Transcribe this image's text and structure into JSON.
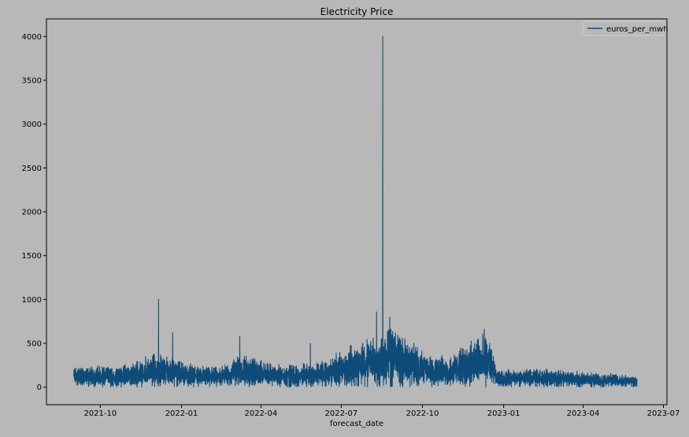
{
  "chart_data": {
    "type": "line",
    "title": "Electricity Price",
    "xlabel": "forecast_date",
    "ylabel": "",
    "x_range": [
      "2021-09-01",
      "2023-06-01"
    ],
    "xlim": [
      "2021-08-01",
      "2023-07-05"
    ],
    "ylim": [
      -200,
      4200
    ],
    "legend_position": "top-right",
    "grid": false,
    "x_ticks": [
      "2021-10",
      "2022-01",
      "2022-04",
      "2022-07",
      "2022-10",
      "2023-01",
      "2023-04",
      "2023-07"
    ],
    "y_ticks": [
      "0",
      "500",
      "1000",
      "1500",
      "2000",
      "2500",
      "3000",
      "3500",
      "4000"
    ],
    "series": [
      {
        "name": "euros_per_mwh",
        "color": "#0f4b78",
        "sampling": "hourly",
        "level_points": [
          [
            "2021-09-01",
            115
          ],
          [
            "2021-10-01",
            120
          ],
          [
            "2021-11-01",
            120
          ],
          [
            "2021-12-01",
            190
          ],
          [
            "2021-12-20",
            180
          ],
          [
            "2022-01-10",
            130
          ],
          [
            "2022-02-15",
            110
          ],
          [
            "2022-03-05",
            180
          ],
          [
            "2022-03-20",
            170
          ],
          [
            "2022-04-15",
            130
          ],
          [
            "2022-05-15",
            130
          ],
          [
            "2022-06-15",
            160
          ],
          [
            "2022-07-15",
            230
          ],
          [
            "2022-08-15",
            320
          ],
          [
            "2022-08-31",
            340
          ],
          [
            "2022-09-30",
            200
          ],
          [
            "2022-10-31",
            170
          ],
          [
            "2022-11-15",
            230
          ],
          [
            "2022-12-01",
            280
          ],
          [
            "2022-12-15",
            300
          ],
          [
            "2022-12-25",
            90
          ],
          [
            "2023-01-31",
            110
          ],
          [
            "2023-03-01",
            100
          ],
          [
            "2023-04-01",
            85
          ],
          [
            "2023-06-01",
            70
          ]
        ],
        "spikes": [
          [
            "2021-12-06",
            1000
          ],
          [
            "2021-12-22",
            620
          ],
          [
            "2022-03-08",
            580
          ],
          [
            "2022-05-27",
            500
          ],
          [
            "2022-08-10",
            860
          ],
          [
            "2022-08-17",
            4000
          ],
          [
            "2022-08-25",
            800
          ],
          [
            "2022-12-10",
            660
          ]
        ]
      }
    ]
  }
}
